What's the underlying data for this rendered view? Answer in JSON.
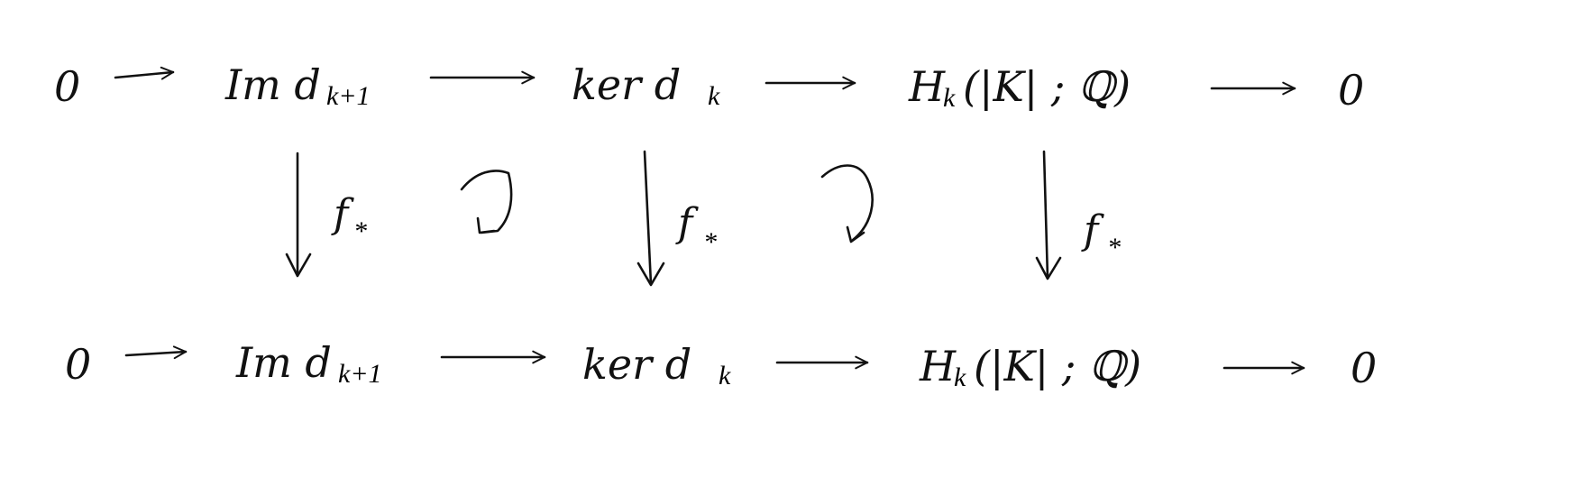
{
  "diagram": {
    "rows": [
      {
        "id": "top",
        "nodes": [
          {
            "id": "zero-left",
            "main": "0",
            "sub": ""
          },
          {
            "id": "im",
            "main": "Im d",
            "sub": "k+1"
          },
          {
            "id": "ker",
            "main": "ker d",
            "sub": "k"
          },
          {
            "id": "h",
            "main": "H",
            "sub": "k",
            "tail": "(|K| ; ℚ)"
          },
          {
            "id": "zero-right",
            "main": "0",
            "sub": ""
          }
        ]
      },
      {
        "id": "bottom",
        "nodes": [
          {
            "id": "zero-left",
            "main": "0",
            "sub": ""
          },
          {
            "id": "im",
            "main": "Im d",
            "sub": "k+1"
          },
          {
            "id": "ker",
            "main": "ker d",
            "sub": "k"
          },
          {
            "id": "h",
            "main": "H",
            "sub": "k",
            "tail": "(|K| ; ℚ)"
          },
          {
            "id": "zero-right",
            "main": "0",
            "sub": ""
          }
        ]
      }
    ],
    "vertical_maps": [
      {
        "from_col": 1,
        "label_main": "f",
        "label_sub": "*"
      },
      {
        "from_col": 2,
        "label_main": "f",
        "label_sub": "*"
      },
      {
        "from_col": 3,
        "label_main": "f",
        "label_sub": "*"
      }
    ],
    "commute_markers": [
      {
        "between_cols": [
          1,
          2
        ],
        "symbol": "↻"
      },
      {
        "between_cols": [
          2,
          3
        ],
        "symbol": "↻"
      }
    ]
  }
}
